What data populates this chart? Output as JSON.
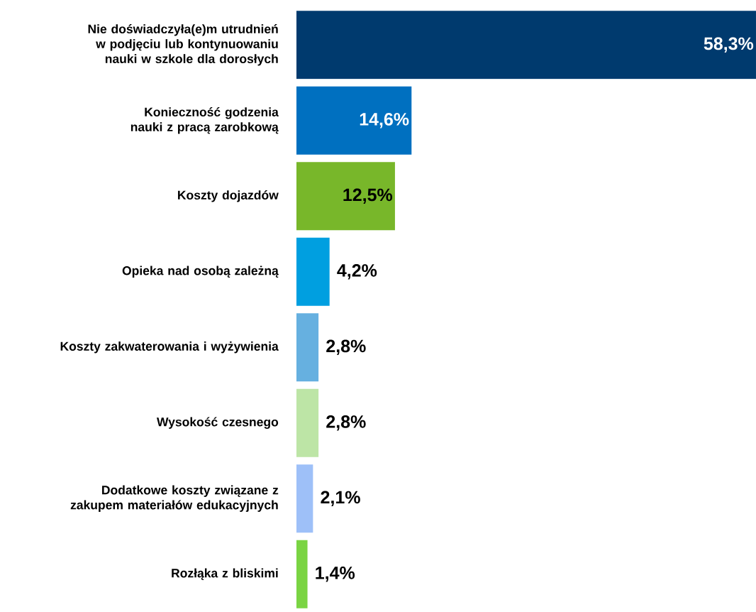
{
  "chart_data": {
    "type": "bar",
    "orientation": "horizontal",
    "categories": [
      "Nie doświadczyła(e)m utrudnień w podjęciu lub kontynuowaniu nauki w szkole dla dorosłych",
      "Konieczność godzenia nauki z pracą zarobkową",
      "Koszty dojazdów",
      "Opieka nad osobą zależną",
      "Koszty zakwaterowania i wyżywienia",
      "Wysokość czesnego",
      "Dodatkowe koszty związane z zakupem materiałów edukacyjnych",
      "Rozłąka z bliskimi"
    ],
    "values": [
      58.3,
      14.6,
      12.5,
      4.2,
      2.8,
      2.8,
      2.1,
      1.4
    ],
    "value_labels": [
      "58,3%",
      "14,6%",
      "12,5%",
      "4,2%",
      "2,8%",
      "2,8%",
      "2,1%",
      "1,4%"
    ],
    "colors": [
      "#003a6e",
      "#0070c0",
      "#78b72a",
      "#009fe0",
      "#66b0e0",
      "#bde5a6",
      "#9ec0f8",
      "#7ad443"
    ]
  }
}
